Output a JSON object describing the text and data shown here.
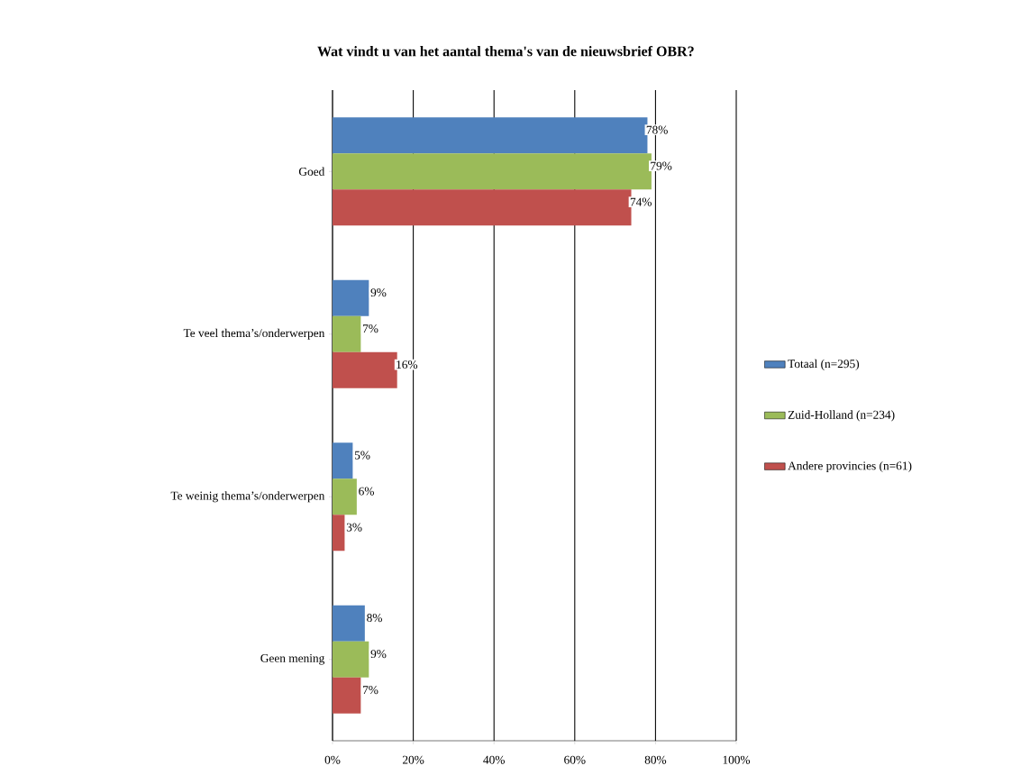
{
  "chart_data": {
    "type": "bar",
    "orientation": "horizontal",
    "title": "Wat vindt  u van het aantal thema's van de nieuwsbrief  OBR?",
    "categories": [
      "Goed",
      "Te veel thema’s/onderwerpen",
      "Te weinig thema’s/onderwerpen",
      "Geen mening"
    ],
    "series": [
      {
        "name": "Totaal (n=295)",
        "color": "#4f81bd",
        "values": [
          78,
          9,
          5,
          8
        ],
        "value_labels": [
          "78%",
          "9%",
          "5%",
          "8%"
        ]
      },
      {
        "name": "Zuid-Holland (n=234)",
        "color": "#9bbb59",
        "values": [
          79,
          7,
          6,
          9
        ],
        "value_labels": [
          "79%",
          "7%",
          "6%",
          "9%"
        ]
      },
      {
        "name": "Andere provincies (n=61)",
        "color": "#c0504d",
        "values": [
          74,
          16,
          3,
          7
        ],
        "value_labels": [
          "74%",
          "16%",
          "3%",
          "7%"
        ]
      }
    ],
    "xlim": [
      0,
      100
    ],
    "xticks": [
      {
        "value": 0,
        "label": "0%"
      },
      {
        "value": 20,
        "label": "20%"
      },
      {
        "value": 40,
        "label": "40%"
      },
      {
        "value": 60,
        "label": "60%"
      },
      {
        "value": 80,
        "label": "80%"
      },
      {
        "value": 100,
        "label": "100%"
      }
    ],
    "grid": "x",
    "legend": "right"
  }
}
